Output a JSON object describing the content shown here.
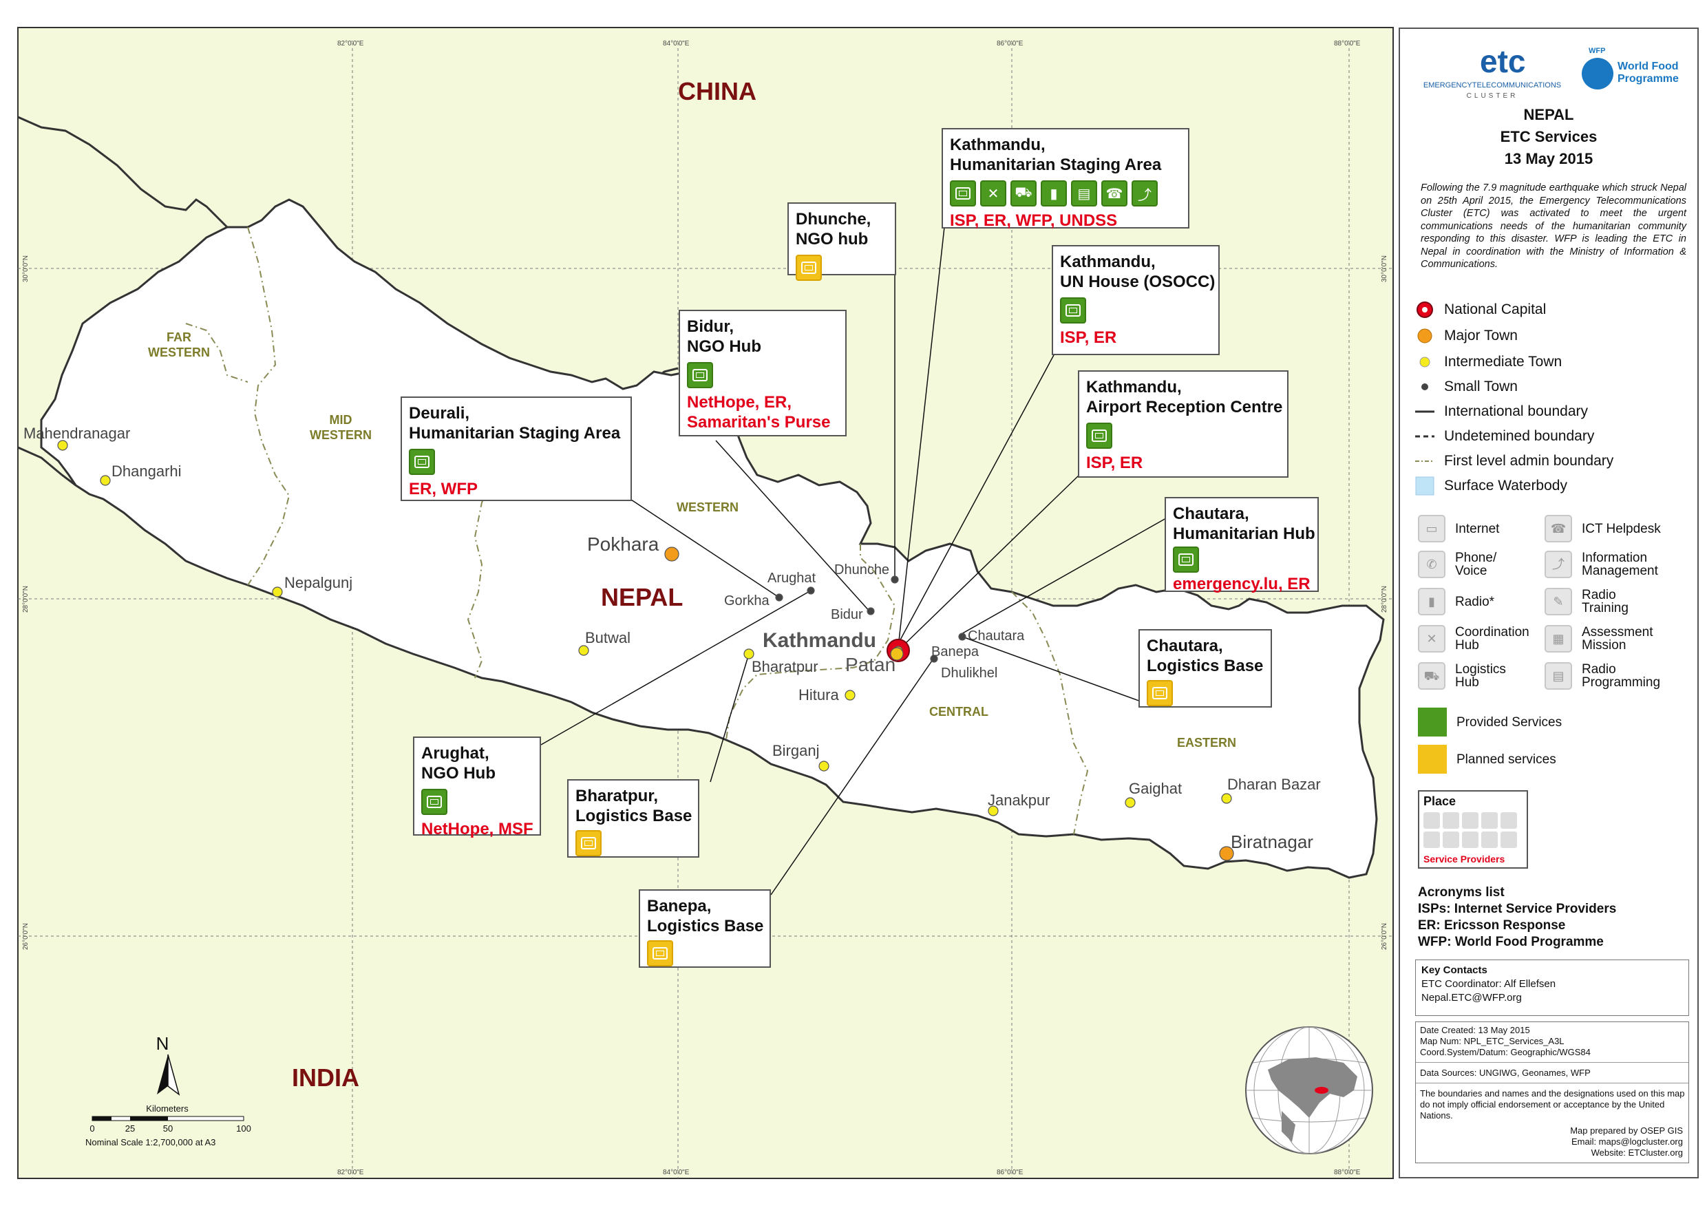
{
  "map_labels": {
    "countries": {
      "china": "CHINA",
      "nepal": "NEPAL",
      "india": "INDIA"
    },
    "regions": {
      "far_western_1": "FAR",
      "far_western_2": "WESTERN",
      "mid_western_1": "MID",
      "mid_western_2": "WESTERN",
      "western": "WESTERN",
      "central": "CENTRAL",
      "eastern": "EASTERN"
    },
    "towns": {
      "mahendranagar": "Mahendranagar",
      "dhangarhi": "Dhangarhi",
      "nepalgunj": "Nepalgunj",
      "pokhara": "Pokhara",
      "butwal": "Butwal",
      "arughat": "Arughat",
      "gorkha": "Gorkha",
      "dhunche": "Dhunche",
      "bidur": "Bidur",
      "kathmandu": "Kathmandu",
      "patan": "Patan",
      "bharatpur": "Bharatpur",
      "hitura": "Hitura",
      "birganj": "Birganj",
      "banepa": "Banepa",
      "dhulikhel": "Dhulikhel",
      "chautara": "Chautara",
      "janakpur": "Janakpur",
      "gaighat": "Gaighat",
      "dharan_bazar": "Dharan Bazar",
      "biratnagar": "Biratnagar"
    },
    "graticule": {
      "lon82": "82°0'0\"E",
      "lon84": "84°0'0\"E",
      "lon86": "86°0'0\"E",
      "lon88": "88°0'0\"E",
      "lat30": "30°0'0\"N",
      "lat28": "28°0'0\"N",
      "lat26": "26°0'0\"N"
    }
  },
  "callouts": [
    {
      "id": "ktm-staging",
      "title": [
        "Kathmandu,",
        "Humanitarian Staging Area"
      ],
      "providers": "ISP, ER, WFP, UNDSS",
      "status": "provided",
      "icons": [
        "internet",
        "coordination",
        "logistics",
        "radio",
        "radio-programming",
        "ict-helpdesk",
        "information-management"
      ]
    },
    {
      "id": "dhunche",
      "title": [
        "Dhunche,",
        "NGO hub"
      ],
      "providers": "",
      "status": "planned",
      "icons": [
        "internet"
      ]
    },
    {
      "id": "ktm-un-house",
      "title": [
        "Kathmandu,",
        "UN House (OSOCC)"
      ],
      "providers": "ISP, ER",
      "status": "provided",
      "icons": [
        "internet"
      ]
    },
    {
      "id": "bidur",
      "title": [
        "Bidur,",
        "NGO Hub"
      ],
      "providers_lines": [
        "NetHope, ER,",
        "Samaritan's Purse"
      ],
      "status": "provided",
      "icons": [
        "internet"
      ]
    },
    {
      "id": "ktm-airport",
      "title": [
        "Kathmandu,",
        "Airport Reception Centre"
      ],
      "providers": "ISP, ER",
      "status": "provided",
      "icons": [
        "internet"
      ]
    },
    {
      "id": "deurali",
      "title": [
        "Deurali,",
        "Humanitarian Staging Area"
      ],
      "providers": "ER, WFP",
      "status": "provided",
      "icons": [
        "internet"
      ]
    },
    {
      "id": "chautara-hub",
      "title": [
        "Chautara,",
        "Humanitarian Hub"
      ],
      "providers": "emergency.lu, ER",
      "status": "provided",
      "icons": [
        "internet"
      ]
    },
    {
      "id": "chautara-log",
      "title": [
        "Chautara,",
        "Logistics Base"
      ],
      "providers": "",
      "status": "planned",
      "icons": [
        "internet"
      ]
    },
    {
      "id": "arughat",
      "title": [
        "Arughat,",
        "NGO Hub"
      ],
      "providers": "NetHope, MSF",
      "status": "provided",
      "icons": [
        "internet"
      ]
    },
    {
      "id": "bharatpur",
      "title": [
        "Bharatpur,",
        "Logistics Base"
      ],
      "providers": "",
      "status": "planned",
      "icons": [
        "internet"
      ]
    },
    {
      "id": "banepa",
      "title": [
        "Banepa,",
        "Logistics Base"
      ],
      "providers": "",
      "status": "planned",
      "icons": [
        "internet"
      ]
    }
  ],
  "scale": {
    "north": "N",
    "units": "Kilometers",
    "ticks": [
      "0",
      "25",
      "50",
      "100"
    ],
    "nominal": "Nominal Scale 1:2,700,000 at A3"
  },
  "panel": {
    "logo_etc": "etc",
    "logo_etc_sub": "EMERGENCYTELECOMMUNICATIONS",
    "logo_etc_sub2": "CLUSTER",
    "logo_wfp_small": "WFP",
    "logo_wfp_1": "World Food",
    "logo_wfp_2": "Programme",
    "title_1": "NEPAL",
    "title_2": "ETC Services",
    "title_3": "13 May 2015",
    "description": "Following the 7.9 magnitude earthquake which struck Nepal on 25th April 2015, the Emergency Telecommunications Cluster (ETC) was activated to meet the urgent communications needs of the humanitarian community responding to this disaster. WFP is leading the ETC in Nepal in coordination with the Ministry of Information & Communications.",
    "legend": {
      "national_capital": "National Capital",
      "major_town": "Major Town",
      "intermediate_town": "Intermediate Town",
      "small_town": "Small Town",
      "international_boundary": "International boundary",
      "undetermined_boundary": "Undetemined boundary",
      "admin_boundary": "First level admin boundary",
      "waterbody": "Surface Waterbody"
    },
    "services": {
      "internet": "Internet",
      "ict_helpdesk": "ICT Helpdesk",
      "phone_1": "Phone/",
      "phone_2": "Voice",
      "info_1": "Information",
      "info_2": "Management",
      "radio": "Radio*",
      "radio_training_1": "Radio",
      "radio_training_2": "Training",
      "coordination_1": "Coordination",
      "coordination_2": "Hub",
      "assessment_1": "Assessment",
      "assessment_2": "Mission",
      "logistics_1": "Logistics",
      "logistics_2": "Hub",
      "radio_prog_1": "Radio",
      "radio_prog_2": "Programming",
      "provided": "Provided Services",
      "planned": "Planned services"
    },
    "place_box": {
      "title": "Place",
      "providers": "Service Providers"
    },
    "acronyms": {
      "heading": "Acronyms list",
      "isp": "ISPs: Internet Service Providers",
      "er": "ER: Ericsson Response",
      "wfp": "WFP: World Food Programme"
    },
    "contacts": {
      "heading": "Key Contacts",
      "coordinator": "ETC Coordinator: Alf Ellefsen",
      "email": "Nepal.ETC@WFP.org"
    },
    "meta": {
      "date": "Date Created: 13 May 2015",
      "mapnum": "Map Num: NPL_ETC_Services_A3L",
      "coords": "Coord.System/Datum: Geographic/WGS84"
    },
    "sources": "Data Sources: UNGIWG, Geonames, WFP",
    "disclaimer": "The boundaries and names and the designations used on this map do not imply official endorsement or acceptance by the United Nations.",
    "credits": {
      "prepared": "Map prepared by OSEP GIS",
      "email": "Email: maps@logcluster.org",
      "website": "Website: ETCluster.org"
    }
  },
  "colors": {
    "land_outside": "#f4f9dc",
    "nepal": "#ffffff",
    "provided": "#4c9a20",
    "planned": "#f3c21a",
    "provider_text": "#e2001a",
    "country_label": "#7a1010",
    "region_label": "#7c7c2a"
  }
}
